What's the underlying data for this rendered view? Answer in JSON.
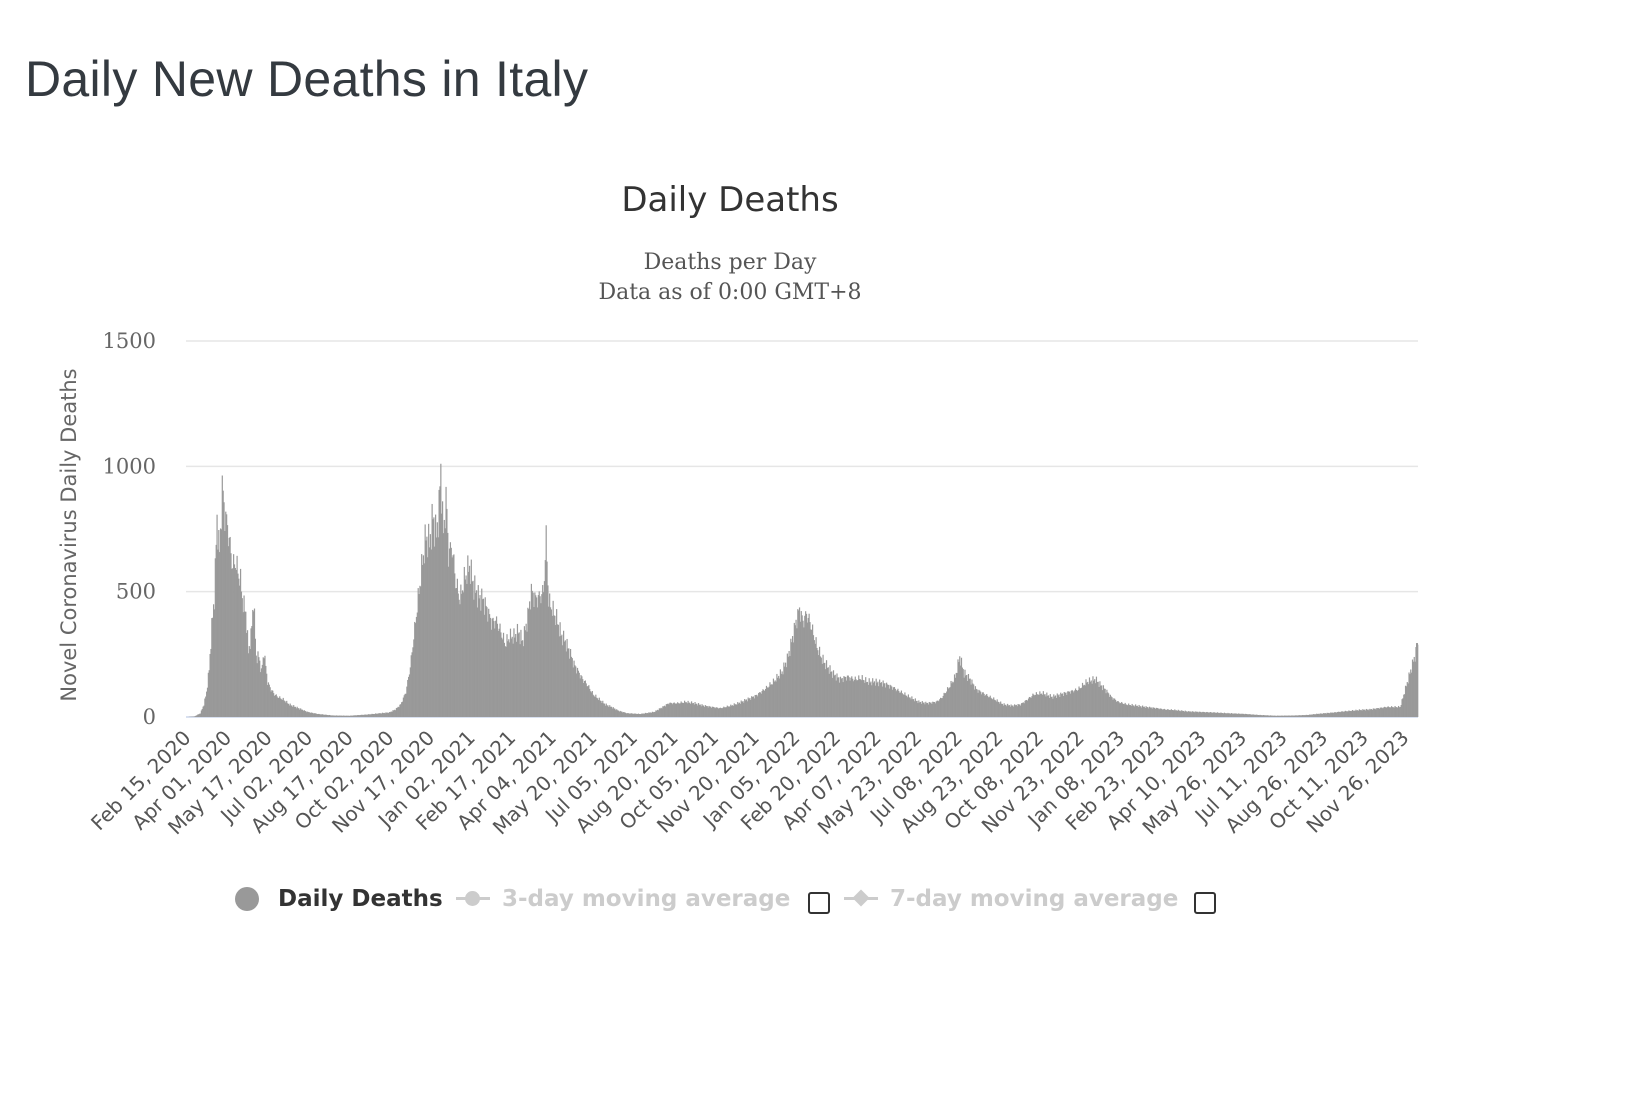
{
  "page": {
    "title": "Daily New Deaths in Italy"
  },
  "chart_data": {
    "type": "bar",
    "title": "Daily Deaths",
    "subtitle_lines": [
      "Deaths per Day",
      "Data as of 0:00 GMT+8"
    ],
    "ylabel": "Novel Coronavirus Daily Deaths",
    "xlabel": "",
    "ylim": [
      0,
      1500
    ],
    "yticks": [
      0,
      500,
      1000,
      1500
    ],
    "grid": true,
    "bar_color": "#999999",
    "gridline_color": "#e6e6e6",
    "x_start": "2020-02-15",
    "x_end": "2023-12-31",
    "xtick_labels": [
      "Feb 15, 2020",
      "Apr 01, 2020",
      "May 17, 2020",
      "Jul 02, 2020",
      "Aug 17, 2020",
      "Oct 02, 2020",
      "Nov 17, 2020",
      "Jan 02, 2021",
      "Feb 17, 2021",
      "Apr 04, 2021",
      "May 20, 2021",
      "Jul 05, 2021",
      "Aug 20, 2021",
      "Oct 05, 2021",
      "Nov 20, 2021",
      "Jan 05, 2022",
      "Feb 20, 2022",
      "Apr 07, 2022",
      "May 23, 2022",
      "Jul 08, 2022",
      "Aug 23, 2022",
      "Oct 08, 2022",
      "Nov 23, 2022",
      "Jan 08, 2023",
      "Feb 23, 2023",
      "Apr 10, 2023",
      "May 26, 2023",
      "Jul 11, 2023",
      "Aug 26, 2023",
      "Oct 11, 2023",
      "Nov 26, 2023"
    ],
    "series": [
      {
        "name": "Daily Deaths",
        "points": [
          [
            "2020-02-15",
            0
          ],
          [
            "2020-02-24",
            2
          ],
          [
            "2020-03-02",
            15
          ],
          [
            "2020-03-06",
            50
          ],
          [
            "2020-03-09",
            100
          ],
          [
            "2020-03-12",
            190
          ],
          [
            "2020-03-15",
            360
          ],
          [
            "2020-03-18",
            480
          ],
          [
            "2020-03-21",
            790
          ],
          [
            "2020-03-24",
            650
          ],
          [
            "2020-03-27",
            915
          ],
          [
            "2020-03-30",
            810
          ],
          [
            "2020-04-02",
            760
          ],
          [
            "2020-04-05",
            680
          ],
          [
            "2020-04-08",
            600
          ],
          [
            "2020-04-11",
            620
          ],
          [
            "2020-04-14",
            580
          ],
          [
            "2020-04-17",
            540
          ],
          [
            "2020-04-20",
            450
          ],
          [
            "2020-04-23",
            420
          ],
          [
            "2020-04-26",
            260
          ],
          [
            "2020-04-29",
            320
          ],
          [
            "2020-05-02",
            470
          ],
          [
            "2020-05-05",
            240
          ],
          [
            "2020-05-08",
            240
          ],
          [
            "2020-05-11",
            180
          ],
          [
            "2020-05-14",
            260
          ],
          [
            "2020-05-18",
            140
          ],
          [
            "2020-05-22",
            110
          ],
          [
            "2020-05-26",
            90
          ],
          [
            "2020-05-30",
            80
          ],
          [
            "2020-06-05",
            70
          ],
          [
            "2020-06-12",
            50
          ],
          [
            "2020-06-19",
            40
          ],
          [
            "2020-06-26",
            30
          ],
          [
            "2020-07-03",
            20
          ],
          [
            "2020-07-15",
            12
          ],
          [
            "2020-08-01",
            6
          ],
          [
            "2020-08-20",
            5
          ],
          [
            "2020-09-10",
            10
          ],
          [
            "2020-09-25",
            15
          ],
          [
            "2020-10-05",
            18
          ],
          [
            "2020-10-12",
            30
          ],
          [
            "2020-10-18",
            50
          ],
          [
            "2020-10-24",
            100
          ],
          [
            "2020-10-29",
            200
          ],
          [
            "2020-11-03",
            350
          ],
          [
            "2020-11-08",
            500
          ],
          [
            "2020-11-12",
            620
          ],
          [
            "2020-11-16",
            720
          ],
          [
            "2020-11-20",
            690
          ],
          [
            "2020-11-24",
            800
          ],
          [
            "2020-11-28",
            720
          ],
          [
            "2020-12-01",
            840
          ],
          [
            "2020-12-03",
            990
          ],
          [
            "2020-12-06",
            720
          ],
          [
            "2020-12-09",
            880
          ],
          [
            "2020-12-12",
            650
          ],
          [
            "2020-12-16",
            680
          ],
          [
            "2020-12-20",
            540
          ],
          [
            "2020-12-25",
            470
          ],
          [
            "2020-12-31",
            560
          ],
          [
            "2021-01-05",
            600
          ],
          [
            "2021-01-10",
            520
          ],
          [
            "2021-01-15",
            480
          ],
          [
            "2021-01-20",
            470
          ],
          [
            "2021-01-25",
            430
          ],
          [
            "2021-01-30",
            380
          ],
          [
            "2021-02-05",
            380
          ],
          [
            "2021-02-10",
            340
          ],
          [
            "2021-02-15",
            290
          ],
          [
            "2021-02-20",
            320
          ],
          [
            "2021-02-25",
            320
          ],
          [
            "2021-03-02",
            340
          ],
          [
            "2021-03-07",
            300
          ],
          [
            "2021-03-12",
            380
          ],
          [
            "2021-03-17",
            500
          ],
          [
            "2021-03-22",
            470
          ],
          [
            "2021-03-27",
            480
          ],
          [
            "2021-03-31",
            500
          ],
          [
            "2021-04-03",
            710
          ],
          [
            "2021-04-06",
            460
          ],
          [
            "2021-04-10",
            430
          ],
          [
            "2021-04-15",
            390
          ],
          [
            "2021-04-20",
            330
          ],
          [
            "2021-04-25",
            300
          ],
          [
            "2021-04-30",
            260
          ],
          [
            "2021-05-05",
            210
          ],
          [
            "2021-05-10",
            180
          ],
          [
            "2021-05-15",
            150
          ],
          [
            "2021-05-20",
            130
          ],
          [
            "2021-05-27",
            90
          ],
          [
            "2021-06-03",
            70
          ],
          [
            "2021-06-10",
            50
          ],
          [
            "2021-06-17",
            40
          ],
          [
            "2021-06-25",
            25
          ],
          [
            "2021-07-05",
            15
          ],
          [
            "2021-07-20",
            12
          ],
          [
            "2021-08-05",
            20
          ],
          [
            "2021-08-15",
            40
          ],
          [
            "2021-08-22",
            55
          ],
          [
            "2021-09-01",
            55
          ],
          [
            "2021-09-10",
            60
          ],
          [
            "2021-09-20",
            55
          ],
          [
            "2021-10-01",
            45
          ],
          [
            "2021-10-10",
            40
          ],
          [
            "2021-10-20",
            35
          ],
          [
            "2021-11-01",
            45
          ],
          [
            "2021-11-10",
            55
          ],
          [
            "2021-11-20",
            70
          ],
          [
            "2021-11-30",
            85
          ],
          [
            "2021-12-10",
            110
          ],
          [
            "2021-12-20",
            140
          ],
          [
            "2021-12-30",
            180
          ],
          [
            "2022-01-05",
            230
          ],
          [
            "2022-01-10",
            300
          ],
          [
            "2022-01-15",
            380
          ],
          [
            "2022-01-19",
            430
          ],
          [
            "2022-01-23",
            380
          ],
          [
            "2022-01-27",
            410
          ],
          [
            "2022-01-31",
            380
          ],
          [
            "2022-02-04",
            330
          ],
          [
            "2022-02-08",
            280
          ],
          [
            "2022-02-14",
            230
          ],
          [
            "2022-02-20",
            200
          ],
          [
            "2022-02-27",
            170
          ],
          [
            "2022-03-07",
            150
          ],
          [
            "2022-03-15",
            160
          ],
          [
            "2022-03-23",
            150
          ],
          [
            "2022-03-31",
            155
          ],
          [
            "2022-04-07",
            140
          ],
          [
            "2022-04-15",
            140
          ],
          [
            "2022-04-25",
            135
          ],
          [
            "2022-05-05",
            120
          ],
          [
            "2022-05-15",
            100
          ],
          [
            "2022-05-25",
            80
          ],
          [
            "2022-06-05",
            60
          ],
          [
            "2022-06-15",
            55
          ],
          [
            "2022-06-25",
            60
          ],
          [
            "2022-07-01",
            75
          ],
          [
            "2022-07-10",
            120
          ],
          [
            "2022-07-17",
            160
          ],
          [
            "2022-07-22",
            240
          ],
          [
            "2022-07-27",
            175
          ],
          [
            "2022-08-03",
            150
          ],
          [
            "2022-08-10",
            110
          ],
          [
            "2022-08-20",
            90
          ],
          [
            "2022-08-31",
            70
          ],
          [
            "2022-09-10",
            50
          ],
          [
            "2022-09-20",
            45
          ],
          [
            "2022-09-30",
            50
          ],
          [
            "2022-10-08",
            70
          ],
          [
            "2022-10-15",
            90
          ],
          [
            "2022-10-25",
            95
          ],
          [
            "2022-11-05",
            80
          ],
          [
            "2022-11-15",
            90
          ],
          [
            "2022-11-25",
            100
          ],
          [
            "2022-12-05",
            110
          ],
          [
            "2022-12-15",
            140
          ],
          [
            "2022-12-25",
            150
          ],
          [
            "2022-12-30",
            130
          ],
          [
            "2023-01-05",
            110
          ],
          [
            "2023-01-12",
            80
          ],
          [
            "2023-01-20",
            60
          ],
          [
            "2023-01-30",
            50
          ],
          [
            "2023-02-10",
            45
          ],
          [
            "2023-02-20",
            40
          ],
          [
            "2023-03-05",
            35
          ],
          [
            "2023-03-15",
            30
          ],
          [
            "2023-03-25",
            28
          ],
          [
            "2023-04-10",
            22
          ],
          [
            "2023-04-25",
            20
          ],
          [
            "2023-05-10",
            18
          ],
          [
            "2023-05-25",
            15
          ],
          [
            "2023-06-15",
            12
          ],
          [
            "2023-07-01",
            8
          ],
          [
            "2023-07-20",
            5
          ],
          [
            "2023-08-10",
            6
          ],
          [
            "2023-08-25",
            8
          ],
          [
            "2023-09-05",
            12
          ],
          [
            "2023-09-15",
            15
          ],
          [
            "2023-09-25",
            18
          ],
          [
            "2023-10-05",
            22
          ],
          [
            "2023-10-15",
            25
          ],
          [
            "2023-10-25",
            28
          ],
          [
            "2023-11-05",
            30
          ],
          [
            "2023-11-15",
            35
          ],
          [
            "2023-11-25",
            40
          ],
          [
            "2023-12-10",
            40
          ],
          [
            "2023-12-31",
            295
          ]
        ]
      }
    ]
  },
  "legend": {
    "items": [
      {
        "label": "Daily Deaths",
        "state": "active",
        "color": "#999999",
        "symbol": "circle"
      },
      {
        "label": "3-day moving average",
        "state": "inactive",
        "color": "#cccccc",
        "symbol": "line-circle"
      },
      {
        "label": "7-day moving average",
        "state": "inactive",
        "color": "#cccccc",
        "symbol": "line-diamond"
      }
    ],
    "checkboxes": [
      {
        "name": "3-day moving average",
        "checked": false
      },
      {
        "name": "7-day moving average",
        "checked": false
      }
    ]
  }
}
